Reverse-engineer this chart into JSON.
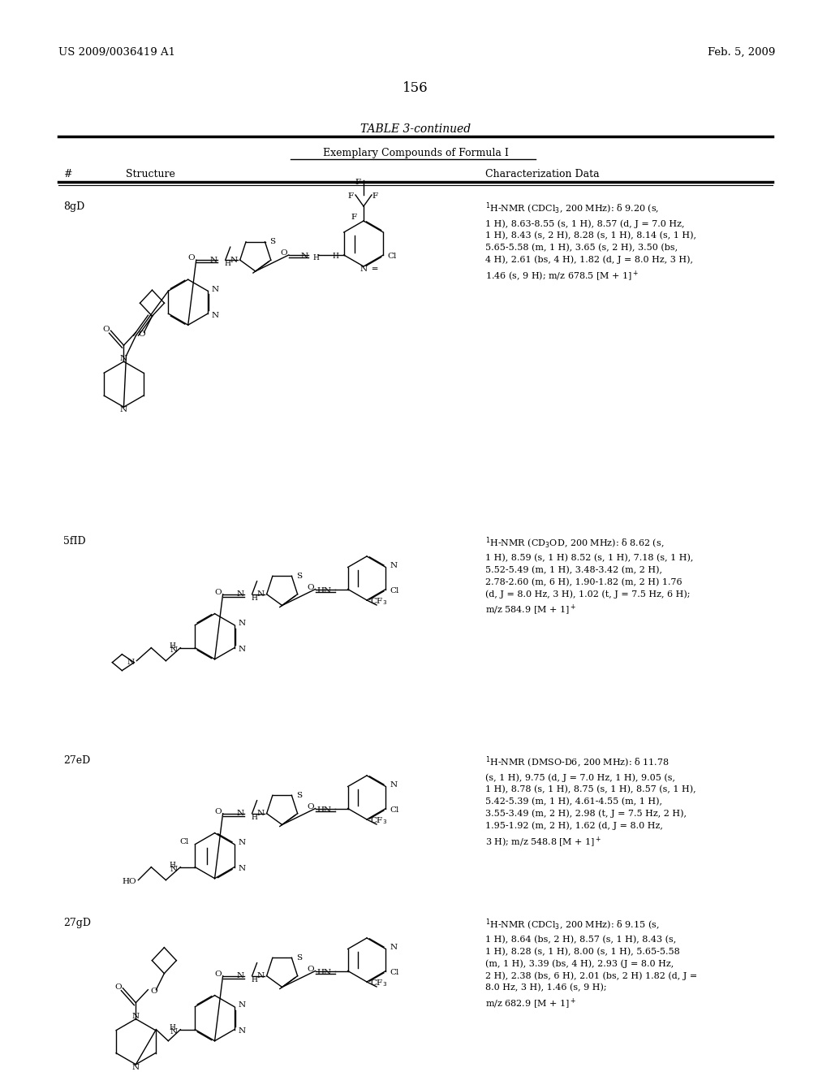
{
  "left_header": "US 2009/0036419 A1",
  "right_header": "Feb. 5, 2009",
  "page_number": "156",
  "table_title": "TABLE 3-continued",
  "subtitle": "Exemplary Compounds of Formula I",
  "col1": "#",
  "col2": "Structure",
  "col3": "Characterization Data",
  "row1_id": "8gD",
  "row1_nmr": "1H-NMR (CDCl3, 200 MHz): δ 9.20 (s,\n1 H), 8.63-8.55 (s, 1 H), 8.57 (d, J = 7.0 Hz,\n1 H), 8.43 (s, 2 H), 8.28 (s, 1 H), 8.14 (s, 1 H),\n5.65-5.58 (m, 1 H), 3.65 (s, 2 H), 3.50 (bs,\n4 H), 2.61 (bs, 4 H), 1.82 (d, J = 8.0 Hz, 3 H),\n1.46 (s, 9 H); m/z 678.5 [M + 1]+",
  "row2_id": "5fID",
  "row2_nmr": "1H-NMR (CD3OD, 200 MHz): δ 8.62 (s,\n1 H), 8.59 (s, 1 H) 8.52 (s, 1 H), 7.18 (s, 1 H),\n5.52-5.49 (m, 1 H), 3.48-3.42 (m, 2 H),\n2.78-2.60 (m, 6 H), 1.90-1.82 (m, 2 H) 1.76\n(d, J = 8.0 Hz, 3 H), 1.02 (t, J = 7.5 Hz, 6 H);\nm/z 584.9 [M + 1]+",
  "row3_id": "27eD",
  "row3_nmr": "1H-NMR (DMSO-D6, 200 MHz): δ 11.78\n(s, 1 H), 9.75 (d, J = 7.0 Hz, 1 H), 9.05 (s,\n1 H), 8.78 (s, 1 H), 8.75 (s, 1 H), 8.57 (s, 1 H),\n5.42-5.39 (m, 1 H), 4.61-4.55 (m, 1 H),\n3.55-3.49 (m, 2 H), 2.98 (t, J = 7.5 Hz, 2 H),\n1.95-1.92 (m, 2 H), 1.62 (d, J = 8.0 Hz,\n3 H); m/z 548.8 [M + 1]+",
  "row4_id": "27gD",
  "row4_nmr": "1H-NMR (CDCl3, 200 MHz): δ 9.15 (s,\n1 H), 8.64 (bs, 2 H), 8.57 (s, 1 H), 8.43 (s,\n1 H), 8.28 (s, 1 H), 8.00 (s, 1 H), 5.65-5.58\n(m, 1 H), 3.39 (bs, 4 H), 2.93 (J = 8.0 Hz,\n2 H), 2.38 (bs, 6 H), 2.01 (bs, 2 H) 1.82 (d, J =\n8.0 Hz, 3 H), 1.46 (s, 9 H);\nm/z 682.9 [M + 1]+"
}
